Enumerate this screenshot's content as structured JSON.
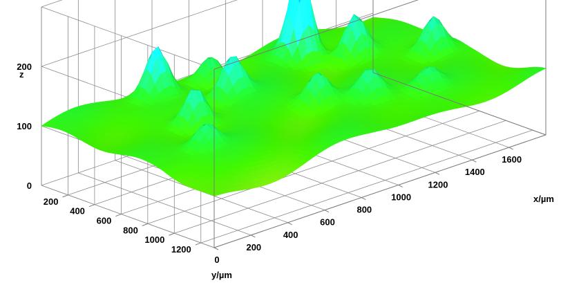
{
  "chart_data": {
    "type": "surface3d",
    "title": "",
    "xlabel": "x/µm",
    "ylabel": "y/µm",
    "zlabel": "z",
    "x_ticks": [
      0,
      200,
      400,
      600,
      800,
      1000,
      1200,
      1400,
      1600
    ],
    "y_ticks": [
      200,
      400,
      600,
      800,
      1000,
      1200
    ],
    "z_ticks": [
      0,
      100,
      200
    ],
    "xlim": [
      0,
      1800
    ],
    "ylim": [
      0,
      1300
    ],
    "zlim": [
      0,
      300
    ],
    "grid": true,
    "colormap": [
      "#f0e020",
      "#40f000",
      "#20f030",
      "#10f0e0",
      "#0030e0"
    ],
    "base_level": 100,
    "peaks": [
      {
        "x": 1260,
        "y": 200,
        "z": 250
      },
      {
        "x": 1440,
        "y": 360,
        "z": 170
      },
      {
        "x": 560,
        "y": 90,
        "z": 180
      },
      {
        "x": 760,
        "y": 380,
        "z": 165
      },
      {
        "x": 460,
        "y": 520,
        "z": 165
      },
      {
        "x": 980,
        "y": 720,
        "z": 150
      },
      {
        "x": 1680,
        "y": 620,
        "z": 160
      },
      {
        "x": 840,
        "y": 110,
        "z": 145
      },
      {
        "x": 1150,
        "y": 880,
        "z": 140
      },
      {
        "x": 300,
        "y": 820,
        "z": 135
      },
      {
        "x": 1380,
        "y": 1000,
        "z": 130
      }
    ]
  }
}
